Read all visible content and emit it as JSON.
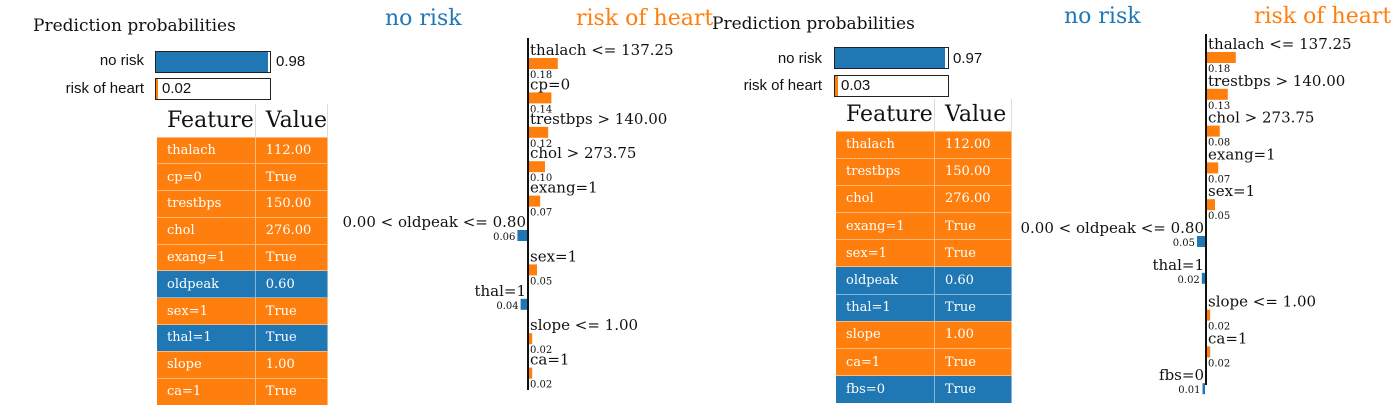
{
  "colors": {
    "no_risk": "#1f77b4",
    "risk": "#ff7f0e"
  },
  "panels": [
    {
      "probabilities": {
        "title": "Prediction probabilities",
        "items": [
          {
            "label": "no risk",
            "value": 0.98,
            "value_text": "0.98"
          },
          {
            "label": "risk of heart",
            "value": 0.02,
            "value_text": "0.02"
          }
        ]
      },
      "headers": {
        "left": "no risk",
        "right": "risk of heart"
      },
      "table": {
        "columns": [
          "Feature",
          "Value"
        ],
        "rows": [
          {
            "feature": "thalach",
            "value": "112.00",
            "class": "risk"
          },
          {
            "feature": "cp=0",
            "value": "True",
            "class": "risk"
          },
          {
            "feature": "trestbps",
            "value": "150.00",
            "class": "risk"
          },
          {
            "feature": "chol",
            "value": "276.00",
            "class": "risk"
          },
          {
            "feature": "exang=1",
            "value": "True",
            "class": "risk"
          },
          {
            "feature": "oldpeak",
            "value": "0.60",
            "class": "no_risk"
          },
          {
            "feature": "sex=1",
            "value": "True",
            "class": "risk"
          },
          {
            "feature": "thal=1",
            "value": "True",
            "class": "no_risk"
          },
          {
            "feature": "slope",
            "value": "1.00",
            "class": "risk"
          },
          {
            "feature": "ca=1",
            "value": "True",
            "class": "risk"
          }
        ]
      }
    },
    {
      "probabilities": {
        "title": "Prediction probabilities",
        "items": [
          {
            "label": "no risk",
            "value": 0.97,
            "value_text": "0.97"
          },
          {
            "label": "risk of heart",
            "value": 0.03,
            "value_text": "0.03"
          }
        ]
      },
      "headers": {
        "left": "no risk",
        "right": "risk of heart"
      },
      "table": {
        "columns": [
          "Feature",
          "Value"
        ],
        "rows": [
          {
            "feature": "thalach",
            "value": "112.00",
            "class": "risk"
          },
          {
            "feature": "trestbps",
            "value": "150.00",
            "class": "risk"
          },
          {
            "feature": "chol",
            "value": "276.00",
            "class": "risk"
          },
          {
            "feature": "exang=1",
            "value": "True",
            "class": "risk"
          },
          {
            "feature": "sex=1",
            "value": "True",
            "class": "risk"
          },
          {
            "feature": "oldpeak",
            "value": "0.60",
            "class": "no_risk"
          },
          {
            "feature": "thal=1",
            "value": "True",
            "class": "no_risk"
          },
          {
            "feature": "slope",
            "value": "1.00",
            "class": "risk"
          },
          {
            "feature": "ca=1",
            "value": "True",
            "class": "risk"
          },
          {
            "feature": "fbs=0",
            "value": "True",
            "class": "no_risk"
          }
        ]
      }
    }
  ],
  "chart_data": [
    {
      "type": "bar",
      "orientation": "horizontal-diverging",
      "series": [
        {
          "name": "no risk",
          "side": "left"
        },
        {
          "name": "risk of heart",
          "side": "right"
        }
      ],
      "categories": [
        "thalach <= 137.25",
        "cp=0",
        "trestbps > 140.00",
        "chol > 273.75",
        "exang=1",
        "0.00 < oldpeak <= 0.80",
        "sex=1",
        "thal=1",
        "slope <= 1.00",
        "ca=1"
      ],
      "values": [
        0.18,
        0.14,
        0.12,
        0.1,
        0.07,
        -0.06,
        0.05,
        -0.04,
        0.02,
        0.02
      ],
      "value_labels": [
        "0.18",
        "0.14",
        "0.12",
        "0.10",
        "0.07",
        "0.06",
        "0.05",
        "0.04",
        "0.02",
        "0.02"
      ]
    },
    {
      "type": "bar",
      "orientation": "horizontal-diverging",
      "series": [
        {
          "name": "no risk",
          "side": "left"
        },
        {
          "name": "risk of heart",
          "side": "right"
        }
      ],
      "categories": [
        "thalach <= 137.25",
        "trestbps > 140.00",
        "chol > 273.75",
        "exang=1",
        "sex=1",
        "0.00 < oldpeak <= 0.80",
        "thal=1",
        "slope <= 1.00",
        "ca=1",
        "fbs=0"
      ],
      "values": [
        0.18,
        0.13,
        0.08,
        0.07,
        0.05,
        -0.05,
        -0.02,
        0.02,
        0.02,
        -0.01
      ],
      "value_labels": [
        "0.18",
        "0.13",
        "0.08",
        "0.07",
        "0.05",
        "0.05",
        "0.02",
        "0.02",
        "0.02",
        "0.01"
      ]
    }
  ]
}
